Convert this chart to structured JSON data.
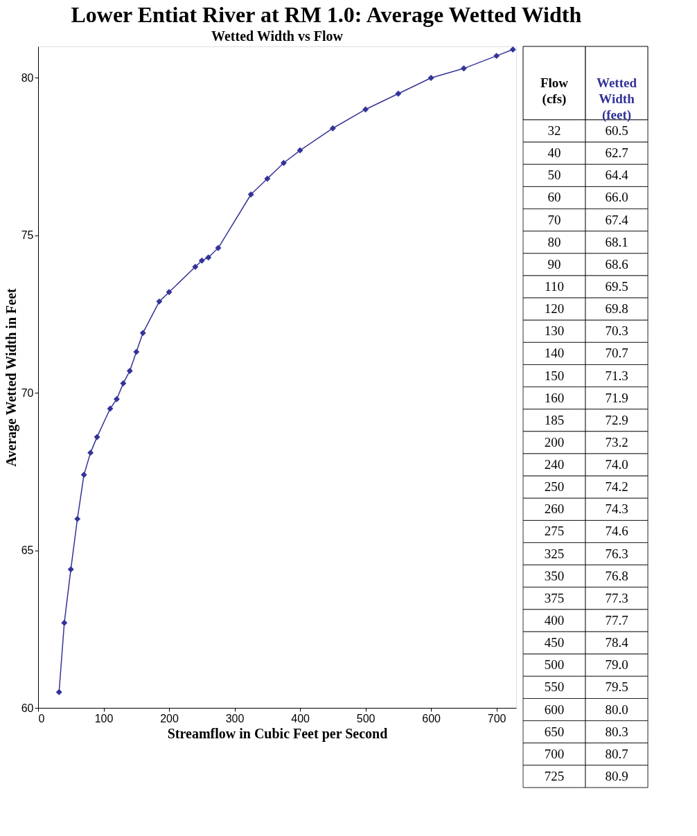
{
  "chart_data": [
    {
      "type": "line",
      "title": "Lower Entiat River at RM 1.0: Average Wetted Width",
      "subtitle": "Wetted Width vs Flow",
      "xlabel": "Streamflow in Cubic Feet per Second",
      "ylabel": "Average Wetted Width in Feet",
      "x": [
        32,
        40,
        50,
        60,
        70,
        80,
        90,
        110,
        120,
        130,
        140,
        150,
        160,
        185,
        200,
        240,
        250,
        260,
        275,
        325,
        350,
        375,
        400,
        450,
        500,
        550,
        600,
        650,
        700,
        725
      ],
      "series": [
        {
          "color": "#333399",
          "values": [
            60.5,
            62.7,
            64.4,
            66.0,
            67.4,
            68.1,
            68.6,
            69.5,
            69.8,
            70.3,
            70.7,
            71.3,
            71.9,
            72.9,
            73.2,
            74.0,
            74.2,
            74.3,
            74.6,
            76.3,
            76.8,
            77.3,
            77.7,
            78.4,
            79.0,
            79.5,
            80.0,
            80.3,
            80.7,
            80.9
          ]
        }
      ],
      "xlim": [
        0,
        730
      ],
      "xticks": [
        0,
        100,
        200,
        300,
        400,
        500,
        600,
        700
      ],
      "ylim": [
        60,
        81
      ],
      "yticks": [
        60,
        65,
        70,
        75,
        80
      ],
      "grid": false,
      "marker": "diamond",
      "line_style": "solid"
    },
    {
      "type": "other",
      "annotations": [
        "Flow (cfs)",
        "Wetted Width (feet)",
        "32",
        "60.5",
        "40",
        "62.7",
        "50",
        "64.4",
        "60",
        "66.0",
        "70",
        "67.4",
        "80",
        "68.1",
        "90",
        "68.6",
        "110",
        "69.5",
        "120",
        "69.8",
        "130",
        "70.3",
        "140",
        "70.7",
        "150",
        "71.3",
        "160",
        "71.9",
        "185",
        "72.9",
        "200",
        "73.2",
        "240",
        "74.0",
        "250",
        "74.2",
        "260",
        "74.3",
        "275",
        "74.6",
        "325",
        "76.3",
        "350",
        "76.8",
        "375",
        "77.3",
        "400",
        "77.7",
        "450",
        "78.4",
        "500",
        "79.0",
        "550",
        "79.5",
        "600",
        "80.0",
        "650",
        "80.3",
        "700",
        "80.7",
        "725",
        "80.9"
      ]
    }
  ]
}
